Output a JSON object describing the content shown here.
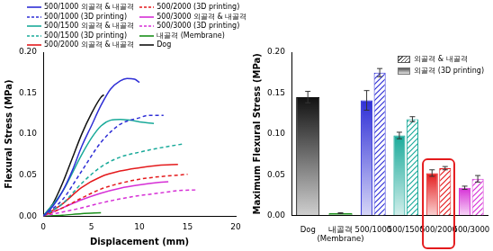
{
  "chart_data": [
    {
      "type": "line",
      "x_label": "Displacement (mm)",
      "y_label": "Flexural Stress (MPa)",
      "xlim": [
        0,
        20
      ],
      "xticks": [
        0,
        5,
        10,
        15,
        20
      ],
      "ylim": [
        0,
        0.2
      ],
      "yticks": [
        {
          "value": 0,
          "label": "0.00"
        },
        {
          "value": 0.05,
          "label": "0.05"
        },
        {
          "value": 0.1,
          "label": "0.10"
        },
        {
          "value": 0.15,
          "label": "0.15"
        },
        {
          "value": 0.2,
          "label": "0.20"
        }
      ],
      "grid": false,
      "legend": "top",
      "series": [
        {
          "name": "500/1000 외골격 & 내골격",
          "color": "#2f2fd6",
          "line_style": "solid",
          "x": [
            0,
            1,
            2,
            3,
            4,
            5,
            6,
            7,
            8,
            8.7,
            9.5,
            10
          ],
          "values": [
            0,
            0.012,
            0.03,
            0.055,
            0.085,
            0.11,
            0.135,
            0.155,
            0.165,
            0.168,
            0.167,
            0.163
          ]
        },
        {
          "name": "500/1000 (3D printing)",
          "color": "#2f2fd6",
          "line_style": "dashed",
          "x": [
            0,
            2,
            4,
            6,
            8,
            10,
            11,
            12.5
          ],
          "values": [
            0,
            0.02,
            0.055,
            0.09,
            0.112,
            0.12,
            0.123,
            0.123
          ]
        },
        {
          "name": "500/1500 외골격 & 내골격",
          "color": "#1aaa9a",
          "line_style": "solid",
          "x": [
            0,
            2,
            4,
            5,
            6,
            7,
            8,
            9,
            10,
            11.5
          ],
          "values": [
            0,
            0.03,
            0.075,
            0.095,
            0.11,
            0.117,
            0.118,
            0.117,
            0.115,
            0.113
          ]
        },
        {
          "name": "500/1500 (3D printing)",
          "color": "#1aaa9a",
          "line_style": "dashed",
          "x": [
            0,
            2,
            4,
            6,
            8,
            10,
            12,
            14,
            14.5
          ],
          "values": [
            0,
            0.015,
            0.04,
            0.06,
            0.072,
            0.078,
            0.083,
            0.087,
            0.088
          ]
        },
        {
          "name": "500/2000 외골격 & 내골격",
          "color": "#e41a1c",
          "line_style": "solid",
          "x": [
            0,
            2,
            4,
            6,
            8,
            10,
            12,
            14
          ],
          "values": [
            0,
            0.015,
            0.035,
            0.048,
            0.055,
            0.059,
            0.062,
            0.063
          ]
        },
        {
          "name": "500/2000 (3D printing)",
          "color": "#e41a1c",
          "line_style": "dashed",
          "x": [
            0,
            2,
            4,
            6,
            8,
            10,
            12,
            14,
            15
          ],
          "values": [
            0,
            0.01,
            0.022,
            0.033,
            0.04,
            0.045,
            0.048,
            0.05,
            0.051
          ]
        },
        {
          "name": "500/3000 외골격 & 내골격",
          "color": "#d62fd6",
          "line_style": "solid",
          "x": [
            0,
            2,
            4,
            6,
            8,
            10,
            12,
            13
          ],
          "values": [
            0,
            0.01,
            0.02,
            0.028,
            0.034,
            0.038,
            0.041,
            0.042
          ]
        },
        {
          "name": "500/3000 (3D printing)",
          "color": "#d62fd6",
          "line_style": "dashed",
          "x": [
            0,
            2,
            4,
            6,
            8,
            10,
            12,
            14,
            16
          ],
          "values": [
            0,
            0.005,
            0.01,
            0.016,
            0.021,
            0.025,
            0.028,
            0.031,
            0.032
          ]
        },
        {
          "name": "내골격 (Membrane)",
          "color": "#1a8f1a",
          "line_style": "solid",
          "x": [
            0,
            2,
            4,
            6
          ],
          "values": [
            0,
            0.001,
            0.003,
            0.004
          ]
        },
        {
          "name": "Dog",
          "color": "#111111",
          "line_style": "solid",
          "x": [
            0,
            1,
            2,
            3,
            4,
            5,
            6,
            6.3
          ],
          "values": [
            0,
            0.015,
            0.04,
            0.07,
            0.1,
            0.125,
            0.145,
            0.148
          ]
        }
      ]
    },
    {
      "type": "bar",
      "y_label": "Maximum Flexural Stress (MPa)",
      "categories": [
        "Dog",
        "내골격\n(Membrane)",
        "500/1000",
        "500/1500",
        "500/2000",
        "500/3000"
      ],
      "ylim": [
        0,
        0.2
      ],
      "yticks": [
        {
          "value": 0,
          "label": "0.00"
        },
        {
          "value": 0.05,
          "label": "0.05"
        },
        {
          "value": 0.1,
          "label": "0.10"
        },
        {
          "value": 0.15,
          "label": "0.15"
        },
        {
          "value": 0.2,
          "label": "0.20"
        }
      ],
      "grid": false,
      "legend": "top-right",
      "series": [
        {
          "name": "외골격 & 내골격",
          "marker": "hatched",
          "colors": [
            "#111111",
            "#1a8f1a",
            "#2f2fd6",
            "#1aaa9a",
            "#e41a1c",
            "#d62fd6"
          ],
          "values": [
            null,
            null,
            0.175,
            0.118,
            0.058,
            0.045
          ],
          "errors": [
            null,
            null,
            0.005,
            0.003,
            0.002,
            0.004
          ]
        },
        {
          "name": "외골격 (3D printing)",
          "marker": "solid",
          "colors": [
            "#111111",
            "#1a8f1a",
            "#2f2fd6",
            "#1aaa9a",
            "#e41a1c",
            "#d62fd6"
          ],
          "values": [
            0.145,
            0.003,
            0.141,
            0.098,
            0.052,
            0.034
          ],
          "errors": [
            0.007,
            0.0005,
            0.012,
            0.004,
            0.004,
            0.002
          ]
        }
      ]
    }
  ]
}
